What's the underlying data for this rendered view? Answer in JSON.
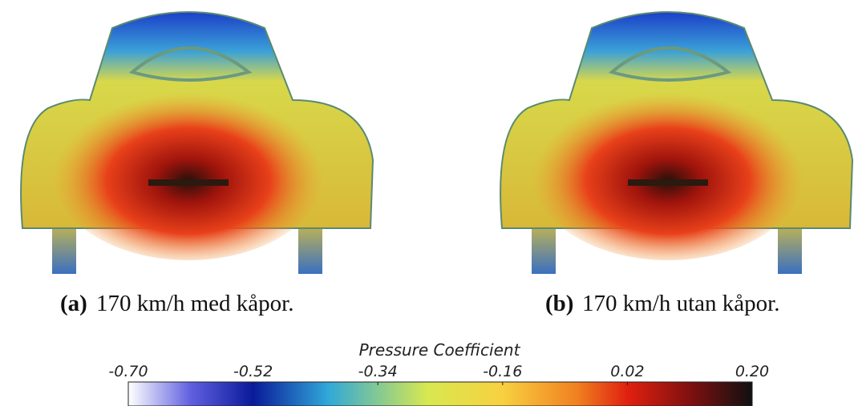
{
  "figures": [
    {
      "label": "(a)",
      "caption": "170 km/h med kåpor."
    },
    {
      "label": "(b)",
      "caption": "170 km/h utan kåpor."
    }
  ],
  "colorbar": {
    "title": "Pressure Coefficient",
    "lim": [
      -0.7,
      0.2
    ],
    "ticks": [
      {
        "value": -0.7,
        "label": "-0.70"
      },
      -0.52,
      -0.34,
      -0.16,
      0.02,
      {
        "value": 0.2,
        "label": "0.20"
      }
    ]
  }
}
